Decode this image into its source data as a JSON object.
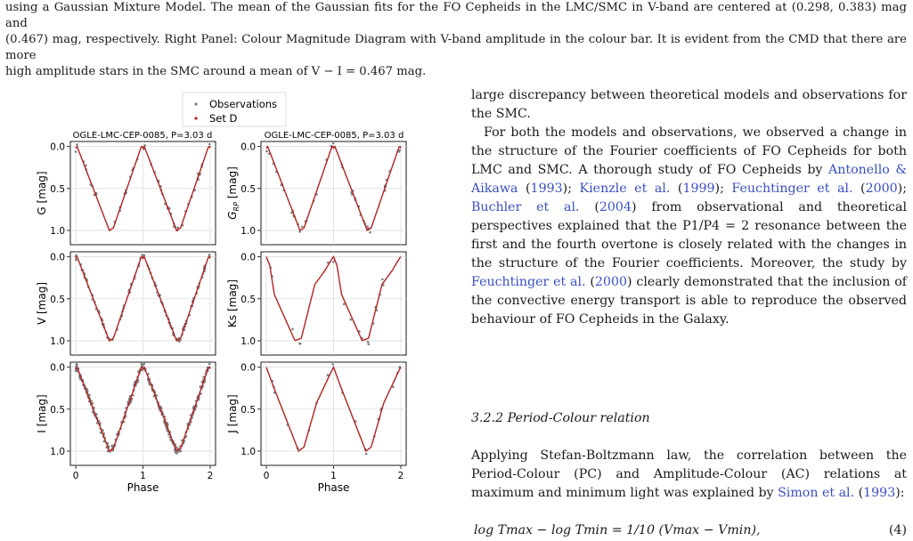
{
  "caption": {
    "line1": "using a Gaussian Mixture Model. The mean of the Gaussian fits for the FO Cepheids in the LMC/SMC in V-band are centered at (0.298, 0.383) mag and",
    "line2": "(0.467) mag, respectively. Right Panel: Colour Magnitude Diagram with V-band amplitude in the colour bar. It is evident from the CMD that there are more",
    "line3": "high amplitude stars in the SMC around a mean of V − I = 0.467 mag."
  },
  "figure": {
    "legend": {
      "observations": "Observations",
      "model": "Set D"
    },
    "title_left": "OGLE-LMC-CEP-0085, P=3.03 d",
    "title_right": "OGLE-LMC-CEP-0085, P=3.03 d",
    "xlabel": "Phase",
    "x_ticks": [
      "0",
      "1",
      "2"
    ],
    "y_ticks": [
      "0.0",
      "0.5",
      "1.0"
    ],
    "panels": [
      {
        "id": "G",
        "ylabel": "G [mag]"
      },
      {
        "id": "GRP",
        "ylabel": "G_RP [mag]"
      },
      {
        "id": "V",
        "ylabel": "V [mag]"
      },
      {
        "id": "Ks",
        "ylabel": "Ks [mag]"
      },
      {
        "id": "I",
        "ylabel": "I [mag]"
      },
      {
        "id": "J",
        "ylabel": "J [mag]"
      }
    ],
    "colors": {
      "model": "#b22222",
      "observations": "#7f7f7f",
      "grid": "#d9d9d9"
    }
  },
  "body": {
    "p1": "large discrepancy between theoretical models and observations for the SMC.",
    "p2_a": "For both the models and observations, we observed a change in the structure of the Fourier coefficients of FO Cepheids for both LMC and SMC. A thorough study of FO Cepheids by ",
    "cite1": "Antonello & Aikawa",
    "cite1y": "1993",
    "cite2": "Kienzle et al.",
    "cite2y": "1999",
    "cite3": "Feuchtinger et al.",
    "cite3y": "2000",
    "cite4": "Buchler et al.",
    "cite4y": "2004",
    "p2_b": " from observational and theoretical perspectives explained that the P1/P4 = 2 resonance between the first and the fourth overtone is closely related with the changes in the structure of the Fourier coefficients. Moreover, the study by ",
    "cite5": "Feuchtinger et al.",
    "cite5y": "2000",
    "p2_c": " clearly demonstrated that the inclusion of the convective energy transport is able to reproduce the observed behaviour of FO Cepheids in the Galaxy."
  },
  "subsection": "3.2.2  Period-Colour relation",
  "body2": {
    "text": "Applying Stefan-Boltzmann law, the correlation between the Period-Colour (PC) and Amplitude-Colour (AC) relations at maximum and minimum light was explained by ",
    "cite": "Simon et al.",
    "cite_year": "1993",
    "tail": ":"
  },
  "equation": {
    "text": "log Tmax − log Tmin = 1/10 (Vmax − Vmin),",
    "number": "(4)"
  }
}
